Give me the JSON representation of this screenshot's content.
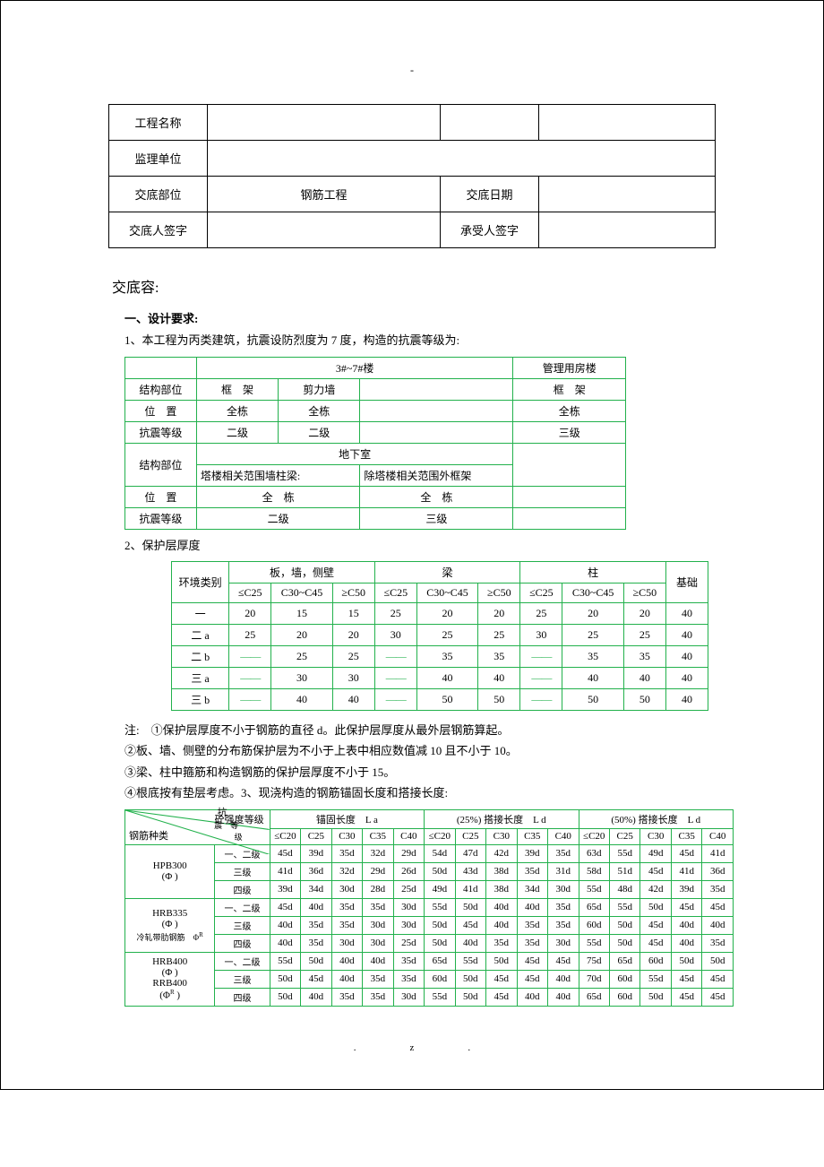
{
  "top_dash": "-",
  "header": {
    "row1_lbl": "工程名称",
    "row2_lbl": "监理单位",
    "row3_lbl": "交底部位",
    "row3_v1": "钢筋工程",
    "row3_v2_lbl": "交底日期",
    "row4_lbl": "交底人签字",
    "row4_v2_lbl": "承受人签字"
  },
  "section_title": "交底容:",
  "sub1": "一、设计要求:",
  "para1": "1、本工程为丙类建筑，抗震设防烈度为 7 度，构造的抗震等级为:",
  "table1": {
    "head_main": "3#~7#楼",
    "head_right": "管理用房楼",
    "r1_lbl": "结构部位",
    "r1_a": "框　架",
    "r1_b": "剪力墙",
    "r1_r": "框　架",
    "r2_lbl": "位　置",
    "r2_a": "全栋",
    "r2_b": "全栋",
    "r2_r": "全栋",
    "r3_lbl": "抗震等级",
    "r3_a": "二级",
    "r3_b": "二级",
    "r3_r": "三级",
    "r4_lbl": "结构部位",
    "r4_mid": "地下室",
    "r4_sub_a": "塔楼相关范围墙柱梁:",
    "r4_sub_b": "除塔楼相关范围外框架",
    "r5_lbl": "位　置",
    "r5_a": "全　栋",
    "r5_b": "全　栋",
    "r6_lbl": "抗震等级",
    "r6_a": "二级",
    "r6_b": "三级"
  },
  "para2": "2、保护层厚度",
  "table2": {
    "h_env": "环境类别",
    "h_g1": "板，墙，侧壁",
    "h_g2": "梁",
    "h_g3": "柱",
    "h_g4": "基础",
    "sub": [
      "≤C25",
      "C30~C45",
      "≥C50",
      "≤C25",
      "C30~C45",
      "≥C50",
      "≤C25",
      "C30~C45",
      "≥C50"
    ],
    "rows": [
      {
        "lbl": "一",
        "v": [
          "20",
          "15",
          "15",
          "25",
          "20",
          "20",
          "25",
          "20",
          "20",
          "40"
        ]
      },
      {
        "lbl": "二 a",
        "v": [
          "25",
          "20",
          "20",
          "30",
          "25",
          "25",
          "30",
          "25",
          "25",
          "40"
        ]
      },
      {
        "lbl": "二 b",
        "v": [
          "—",
          "25",
          "25",
          "—",
          "35",
          "35",
          "—",
          "35",
          "35",
          "40"
        ]
      },
      {
        "lbl": "三 a",
        "v": [
          "—",
          "30",
          "30",
          "—",
          "40",
          "40",
          "—",
          "40",
          "40",
          "40"
        ]
      },
      {
        "lbl": "三 b",
        "v": [
          "—",
          "40",
          "40",
          "—",
          "50",
          "50",
          "—",
          "50",
          "50",
          "40"
        ]
      }
    ],
    "dash": "——"
  },
  "notes": {
    "lead": "注:　",
    "n1": "①保护层厚度不小于钢筋的直径 d。此保护层厚度从最外层钢筋算起。",
    "n2": "②板、墙、侧壁的分布筋保护层为不小于上表中相应数值减 10 且不小于 10。",
    "n3": "③梁、柱中箍筋和构造钢筋的保护层厚度不小于 15。",
    "n4": "④根底按有垫层考虑。3、现浇构造的钢筋锚固长度和搭接长度:"
  },
  "table3": {
    "diag_tr": "砼强度等级",
    "diag_mid_a": "抗",
    "diag_mid_b": "震",
    "diag_mid_c": "等",
    "diag_mid_d": "级",
    "diag_bl": "钢筋种类",
    "h_g1": "锚固长度　L a",
    "h_g2": "(25%) 搭接长度　L d",
    "h_g3": "(50%) 搭接长度　L d",
    "cols": [
      "≤C20",
      "C25",
      "C30",
      "C35",
      "C40",
      "≤C20",
      "C25",
      "C30",
      "C35",
      "C40",
      "≤C20",
      "C25",
      "C30",
      "C35",
      "C40"
    ],
    "types": [
      {
        "lbl": "HPB300",
        "sub": "(Φ )"
      },
      {
        "lbl": "HRB335",
        "sub": "(Φ )",
        "extra": "冷轧带肋钢筋　　Φᴿ"
      },
      {
        "lbl": "HRB400",
        "sub": "(Φ )",
        "lbl2": "RRB400",
        "sub2": "(Φᴿ )"
      }
    ],
    "grades": [
      "一、二级",
      "三级",
      "四级"
    ],
    "data": [
      [
        "45d",
        "39d",
        "35d",
        "32d",
        "29d",
        "54d",
        "47d",
        "42d",
        "39d",
        "35d",
        "63d",
        "55d",
        "49d",
        "45d",
        "41d"
      ],
      [
        "41d",
        "36d",
        "32d",
        "29d",
        "26d",
        "50d",
        "43d",
        "38d",
        "35d",
        "31d",
        "58d",
        "51d",
        "45d",
        "41d",
        "36d"
      ],
      [
        "39d",
        "34d",
        "30d",
        "28d",
        "25d",
        "49d",
        "41d",
        "38d",
        "34d",
        "30d",
        "55d",
        "48d",
        "42d",
        "39d",
        "35d"
      ],
      [
        "45d",
        "40d",
        "35d",
        "35d",
        "30d",
        "55d",
        "50d",
        "40d",
        "40d",
        "35d",
        "65d",
        "55d",
        "50d",
        "45d",
        "45d"
      ],
      [
        "40d",
        "35d",
        "35d",
        "30d",
        "30d",
        "50d",
        "45d",
        "40d",
        "35d",
        "35d",
        "60d",
        "50d",
        "45d",
        "40d",
        "40d"
      ],
      [
        "40d",
        "35d",
        "30d",
        "30d",
        "25d",
        "50d",
        "40d",
        "35d",
        "35d",
        "30d",
        "55d",
        "50d",
        "45d",
        "40d",
        "35d"
      ],
      [
        "55d",
        "50d",
        "40d",
        "40d",
        "35d",
        "65d",
        "55d",
        "50d",
        "45d",
        "45d",
        "75d",
        "65d",
        "60d",
        "50d",
        "50d"
      ],
      [
        "50d",
        "45d",
        "40d",
        "35d",
        "35d",
        "60d",
        "50d",
        "45d",
        "45d",
        "40d",
        "70d",
        "60d",
        "55d",
        "45d",
        "45d"
      ],
      [
        "50d",
        "40d",
        "35d",
        "35d",
        "30d",
        "55d",
        "50d",
        "45d",
        "40d",
        "40d",
        "65d",
        "60d",
        "50d",
        "45d",
        "45d"
      ]
    ]
  },
  "footer_a": ".",
  "footer_b": "z.",
  "colors": {
    "green": "#22b14c",
    "black": "#000000"
  }
}
